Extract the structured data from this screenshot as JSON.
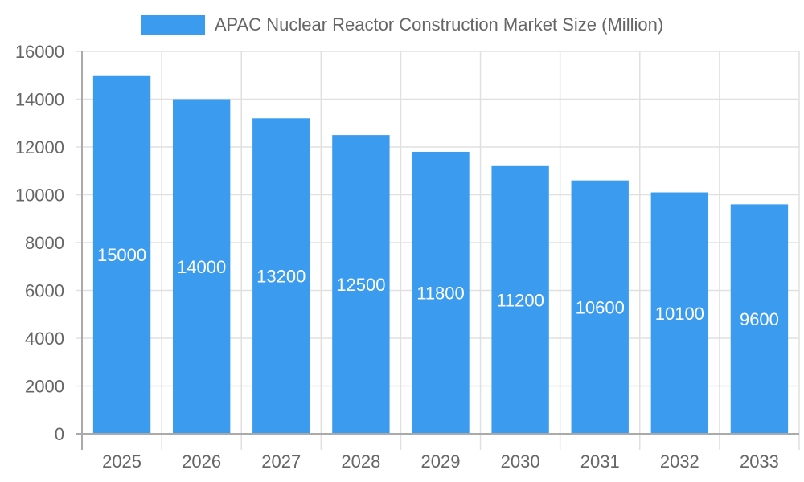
{
  "chart_data": {
    "type": "bar",
    "title": "",
    "legend": [
      {
        "label": "APAC Nuclear Reactor Construction Market Size (Million)",
        "color": "#3a9bef"
      }
    ],
    "legend_position": "top",
    "categories": [
      "2025",
      "2026",
      "2027",
      "2028",
      "2029",
      "2030",
      "2031",
      "2032",
      "2033"
    ],
    "series": [
      {
        "name": "APAC Nuclear Reactor Construction Market Size (Million)",
        "values": [
          15000,
          14000,
          13200,
          12500,
          11800,
          11200,
          10600,
          10100,
          9600
        ],
        "color": "#3a9bef"
      }
    ],
    "data_labels": [
      "15000",
      "14000",
      "13200",
      "12500",
      "11800",
      "11200",
      "10600",
      "10100",
      "9600"
    ],
    "xlabel": "",
    "ylabel": "",
    "ylim": [
      0,
      16000
    ],
    "yticks": [
      0,
      2000,
      4000,
      6000,
      8000,
      10000,
      12000,
      14000,
      16000
    ],
    "grid": true
  },
  "legend": {
    "label": "APAC Nuclear Reactor Construction Market Size (Million)",
    "color": "#3a9bef"
  }
}
